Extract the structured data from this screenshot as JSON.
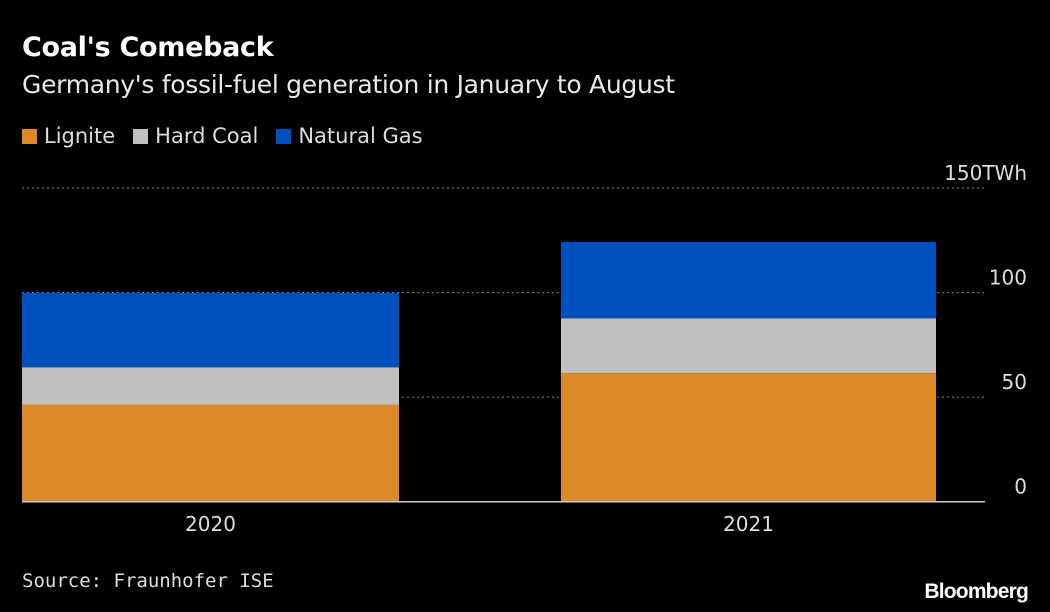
{
  "chart_data": {
    "type": "bar",
    "stacked": true,
    "title": "Coal's Comeback",
    "subtitle": "Germany's fossil-fuel generation in January to August",
    "categories": [
      "2020",
      "2021"
    ],
    "series": [
      {
        "name": "Lignite",
        "color": "#dc8a27",
        "values": [
          46.3,
          61.4
        ]
      },
      {
        "name": "Hard Coal",
        "color": "#bfbfbf",
        "values": [
          18.0,
          26.3
        ]
      },
      {
        "name": "Natural Gas",
        "color": "#0050bd",
        "values": [
          35.5,
          36.5
        ]
      }
    ],
    "ylim": [
      0,
      150
    ],
    "yticks": [
      0,
      50,
      100,
      150
    ],
    "ytick_labels": [
      "0",
      "50",
      "100",
      "150TWh"
    ],
    "y_axis_position": "right",
    "grid": true,
    "legend_position": "top-left",
    "source": "Source: Fraunhofer ISE"
  },
  "branding": {
    "logo": "Bloomberg"
  }
}
